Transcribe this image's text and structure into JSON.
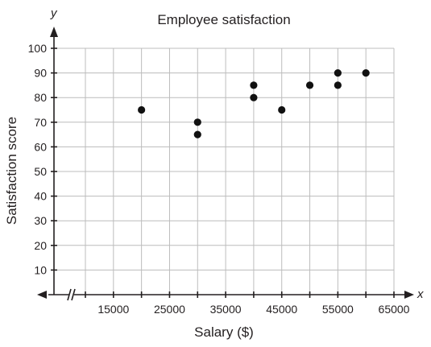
{
  "chart_data": {
    "type": "scatter",
    "title": "Employee satisfaction",
    "xlabel": "Salary ($)",
    "ylabel": "Satisfaction score",
    "x_axis_letter": "x",
    "y_axis_letter": "y",
    "xlim": [
      10000,
      65000
    ],
    "ylim": [
      0,
      100
    ],
    "x_axis_break": true,
    "x_ticks": [
      15000,
      25000,
      35000,
      45000,
      55000,
      65000
    ],
    "x_tick_labels": [
      "15000",
      "25000",
      "35000",
      "45000",
      "55000",
      "65000"
    ],
    "y_ticks": [
      10,
      20,
      30,
      40,
      50,
      60,
      70,
      80,
      90,
      100
    ],
    "y_tick_labels": [
      "10",
      "20",
      "30",
      "40",
      "50",
      "60",
      "70",
      "80",
      "90",
      "100"
    ],
    "grid": true,
    "point_color": "#111111",
    "points": [
      {
        "x": 20000,
        "y": 75
      },
      {
        "x": 30000,
        "y": 70
      },
      {
        "x": 30000,
        "y": 65
      },
      {
        "x": 40000,
        "y": 85
      },
      {
        "x": 40000,
        "y": 80
      },
      {
        "x": 45000,
        "y": 75
      },
      {
        "x": 50000,
        "y": 85
      },
      {
        "x": 55000,
        "y": 90
      },
      {
        "x": 55000,
        "y": 85
      },
      {
        "x": 60000,
        "y": 90
      }
    ]
  }
}
